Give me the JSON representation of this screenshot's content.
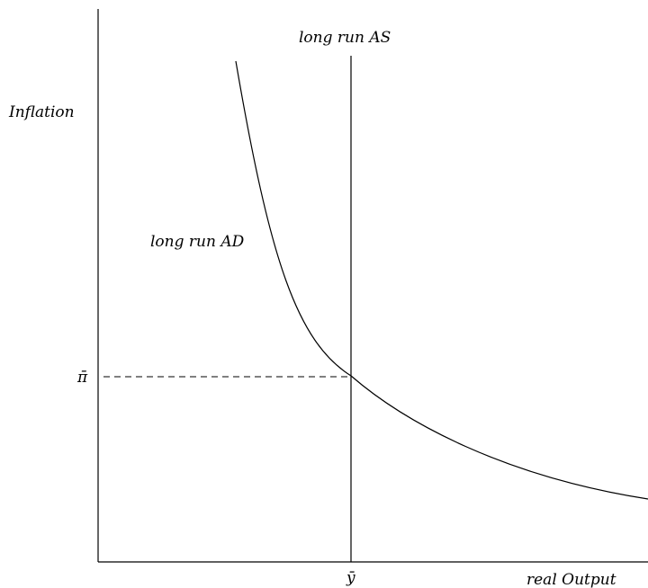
{
  "diagram": {
    "y_axis_label": "Inflation",
    "x_axis_label": "real Output",
    "as_label": "long run AS",
    "ad_label": "long run AD",
    "pi_bar_label": "π̄",
    "y_bar_label": "ȳ"
  }
}
